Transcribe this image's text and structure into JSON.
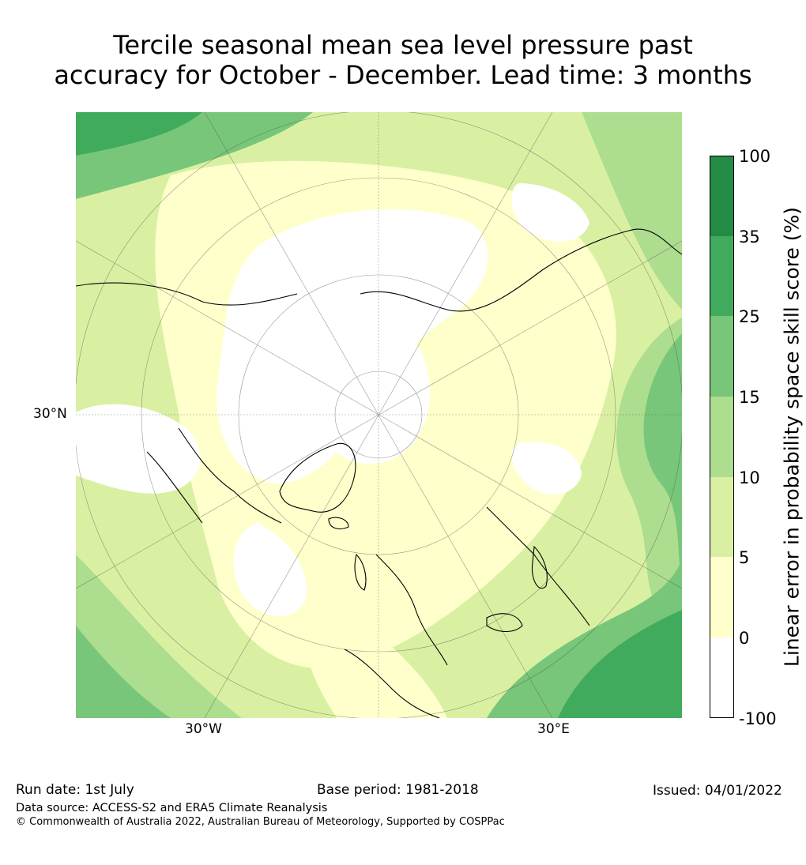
{
  "title_line1": "Tercile seasonal mean sea level pressure past",
  "title_line2": "accuracy for October - December. Lead time: 3 months",
  "map": {
    "lat_label": "30°N",
    "lon_labels": [
      "30°W",
      "30°E"
    ]
  },
  "colorbar": {
    "label": "Linear error in probability space skill score (%)",
    "ticks": [
      "100",
      "35",
      "25",
      "15",
      "10",
      "5",
      "0",
      "-100"
    ],
    "colors": [
      "#238b45",
      "#41ab5d",
      "#78c679",
      "#addd8e",
      "#d9f0a3",
      "#ffffcc",
      "#ffffff"
    ]
  },
  "footer": {
    "run_date": "Run date: 1st July",
    "base_period": "Base period: 1981-2018",
    "issued": "Issued: 04/01/2022",
    "data_source": "Data source: ACCESS-S2 and ERA5 Climate Reanalysis",
    "copyright": "© Commonwealth of Australia 2022, Australian Bureau of Meteorology, Supported by COSPPac"
  }
}
